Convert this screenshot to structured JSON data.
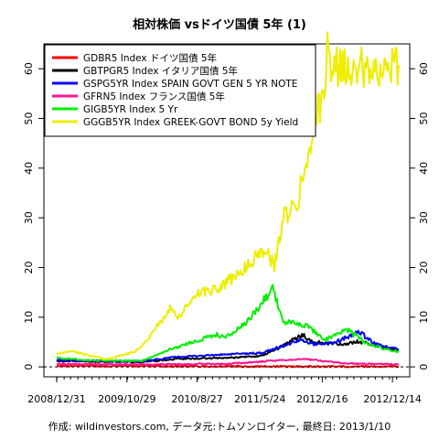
{
  "chart_data": {
    "type": "line",
    "title": "相対株価 vsドイツ国債 5年 (1)",
    "footer": "作成: wildinvestors.com, データ元:トムソンロイター, 最終日: 2013/1/10",
    "xlim": [
      "2008-12-31",
      "2013-01-10"
    ],
    "ylim": [
      -2,
      65
    ],
    "yticks": [
      0,
      10,
      20,
      30,
      40,
      50,
      60
    ],
    "xtick_labels": [
      "2008/12/31",
      "2009/10/29",
      "2010/8/27",
      "2011/5/24",
      "2012/2/16",
      "2012/12/14"
    ],
    "xtick_dates": [
      "2008-12-31",
      "2009-10-29",
      "2010-08-27",
      "2011-05-24",
      "2012-02-16",
      "2012-12-14"
    ],
    "grid": false,
    "legend_position": "top-left",
    "series": [
      {
        "name": "GDBR5 Index ドイツ国債 5年",
        "color": "#ff0000",
        "dates": [
          "2008-12-31",
          "2010-01-01",
          "2011-01-01",
          "2012-01-01",
          "2013-01-10"
        ],
        "values": [
          0.2,
          0.15,
          0.1,
          0.08,
          0.1
        ]
      },
      {
        "name": "GBTPGR5 Index イタリア国債 5年",
        "color": "#000000",
        "dates": [
          "2008-12-31",
          "2009-06-01",
          "2010-01-01",
          "2010-06-01",
          "2011-01-01",
          "2011-06-01",
          "2011-08-01",
          "2011-11-25",
          "2012-01-01",
          "2012-06-01",
          "2012-07-15",
          "2013-01-10"
        ],
        "values": [
          1.2,
          1.1,
          1.0,
          1.6,
          1.8,
          2.2,
          3.5,
          6.5,
          5.0,
          4.5,
          5.2,
          3.2
        ]
      },
      {
        "name": "GSPG5YR Index SPAIN GOVT GEN 5 YR NOTE",
        "color": "#0000ff",
        "dates": [
          "2008-12-31",
          "2009-06-01",
          "2010-01-01",
          "2010-06-01",
          "2011-01-01",
          "2011-06-01",
          "2011-11-25",
          "2012-01-01",
          "2012-04-01",
          "2012-07-25",
          "2012-10-01",
          "2013-01-10"
        ],
        "values": [
          1.4,
          1.2,
          1.1,
          2.0,
          2.5,
          2.8,
          5.5,
          4.6,
          4.8,
          7.0,
          4.5,
          3.5
        ]
      },
      {
        "name": "GFRN5 Index フランス国債 5年",
        "color": "#ff1493",
        "dates": [
          "2008-12-31",
          "2010-01-01",
          "2011-01-01",
          "2011-11-25",
          "2012-06-01",
          "2013-01-10"
        ],
        "values": [
          0.6,
          0.5,
          0.6,
          1.6,
          0.7,
          0.5
        ]
      },
      {
        "name": "GIGB5YR Index 5 Yr",
        "color": "#00ee00",
        "dates": [
          "2008-12-31",
          "2009-06-01",
          "2010-01-01",
          "2010-05-01",
          "2010-11-15",
          "2011-01-01",
          "2011-04-01",
          "2011-07-18",
          "2011-09-01",
          "2011-12-01",
          "2012-03-01",
          "2012-06-01",
          "2012-09-01",
          "2013-01-10"
        ],
        "values": [
          1.8,
          1.3,
          1.2,
          3.5,
          6.5,
          6.0,
          9.0,
          16.0,
          9.0,
          8.5,
          5.5,
          7.5,
          4.5,
          3.0
        ]
      },
      {
        "name": "GGGB5YR Index GREEK-GOVT BOND 5y Yield",
        "color": "#eeee00",
        "dates": [
          "2008-12-31",
          "2009-03-01",
          "2009-08-01",
          "2009-12-01",
          "2010-01-15",
          "2010-05-07",
          "2010-06-01",
          "2010-09-01",
          "2010-12-01",
          "2011-03-01",
          "2011-06-15",
          "2011-07-25",
          "2011-09-01",
          "2011-11-01",
          "2012-01-01",
          "2012-02-20",
          "2012-03-09",
          "2012-03-20",
          "2012-06-01",
          "2012-09-01",
          "2013-01-10"
        ],
        "values": [
          2.5,
          3.2,
          1.5,
          3.0,
          5.0,
          12.0,
          9.5,
          15.0,
          16.0,
          19.0,
          24.0,
          20.0,
          30.0,
          33.0,
          47.0,
          55.0,
          64.0,
          60.0,
          60.5,
          60.3,
          60.8
        ]
      }
    ]
  }
}
